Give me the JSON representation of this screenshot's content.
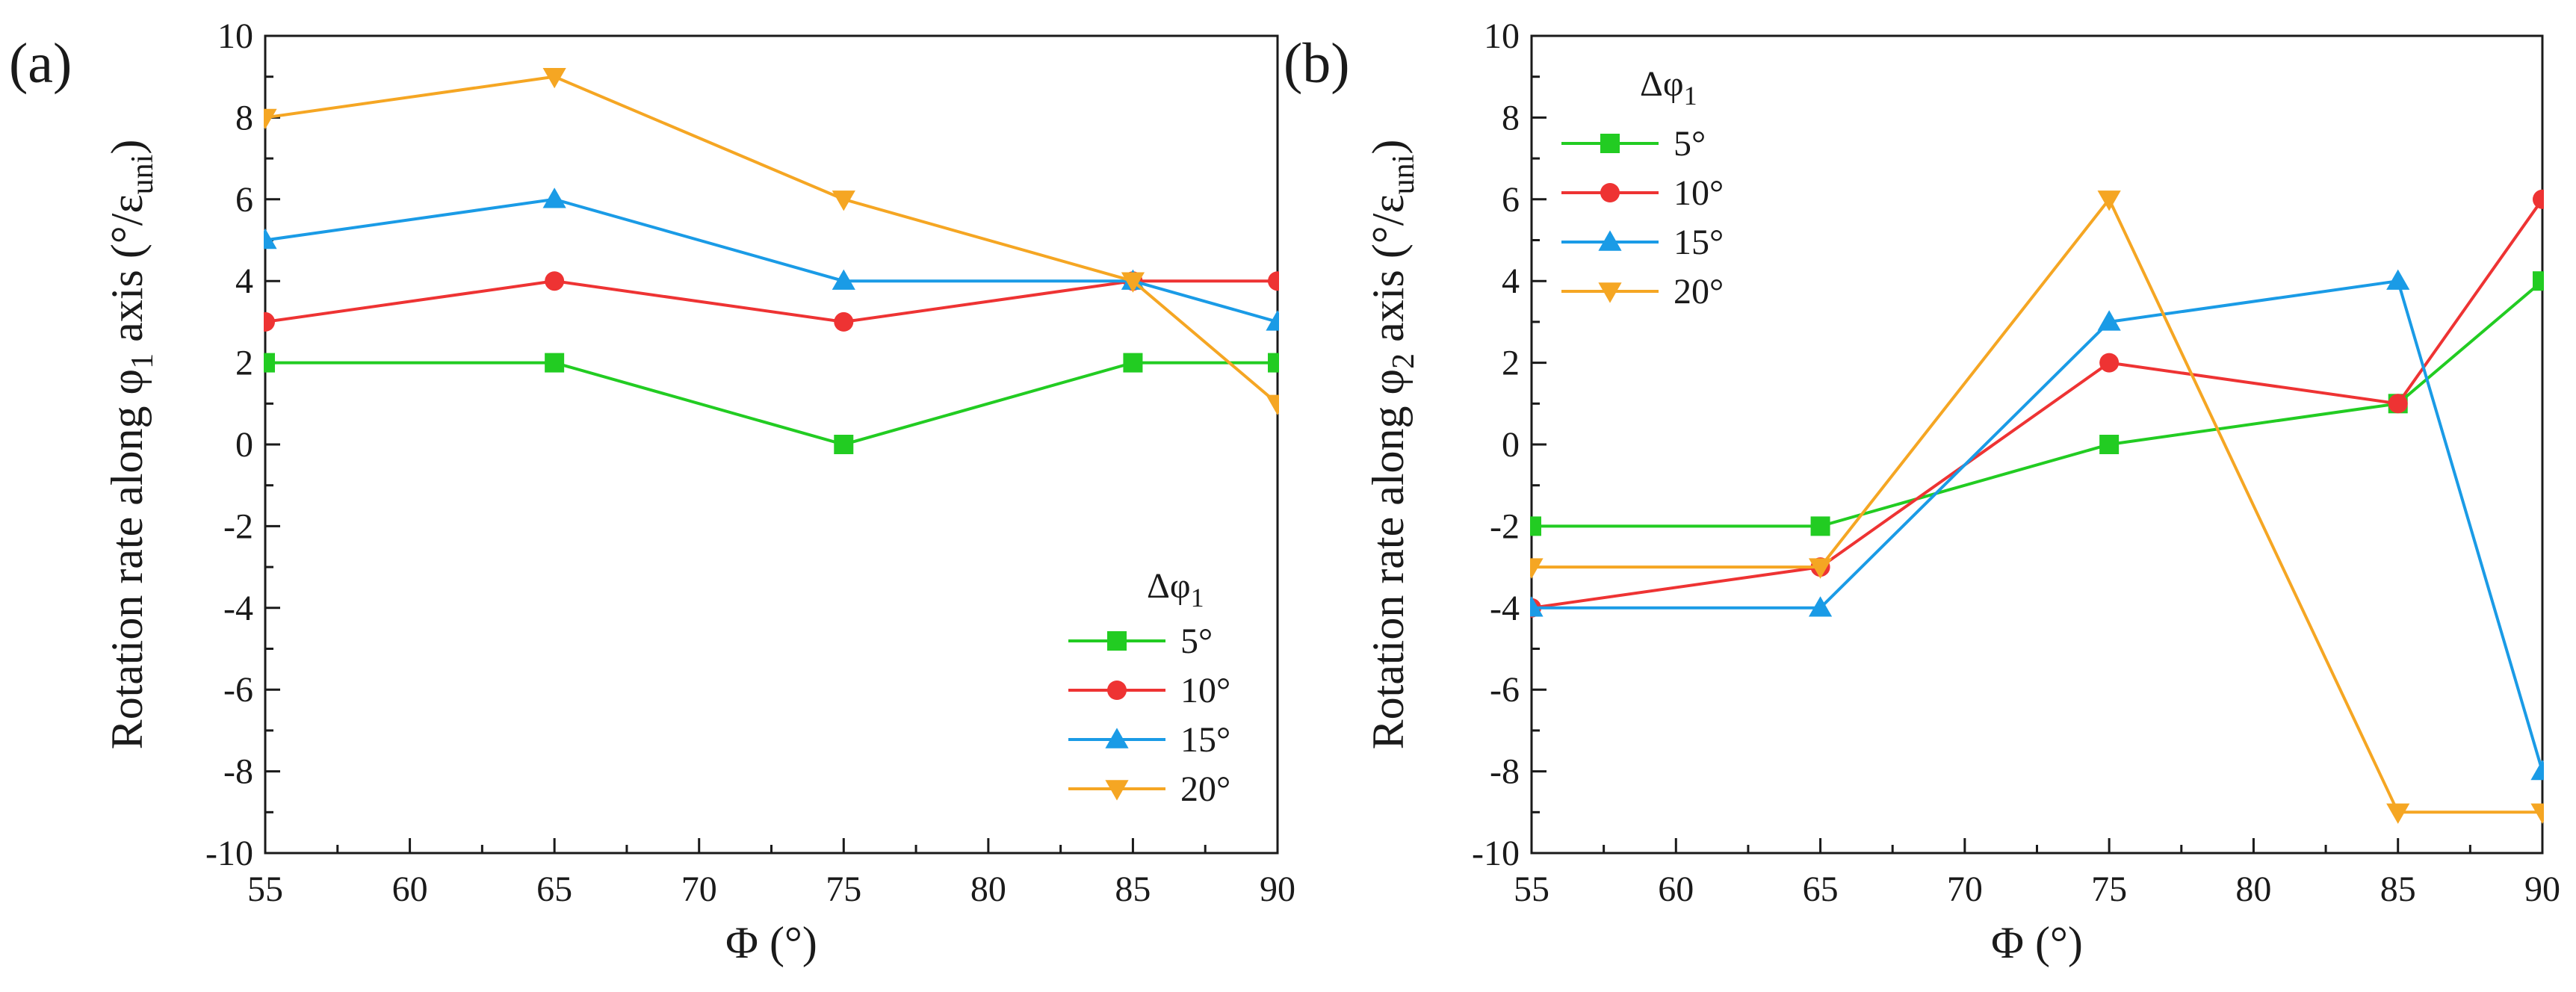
{
  "chart_data": [
    {
      "panel_label": "(a)",
      "type": "line",
      "xlabel": "Φ (°)",
      "ylabel": "Rotation rate along φ1 axis (°/εuni)",
      "ylabel_parts": {
        "pre": "Rotation rate along φ",
        "sub": "1",
        "mid": " axis (°/ε",
        "sub2": "uni",
        "post": ")"
      },
      "xlim": [
        55,
        90
      ],
      "ylim": [
        -10,
        10
      ],
      "xticks": [
        "55",
        "60",
        "65",
        "70",
        "75",
        "80",
        "85",
        "90"
      ],
      "yticks": [
        "10",
        "8",
        "6",
        "4",
        "2",
        "0",
        "-2",
        "-4",
        "-6",
        "-8",
        "-10"
      ],
      "legend_title": "Δφ1",
      "legend_title_parts": {
        "pre": "Δφ",
        "sub": "1"
      },
      "legend_position": "bottom-right",
      "x": [
        55,
        65,
        75,
        85,
        90
      ],
      "series": [
        {
          "name": "5°",
          "marker": "square",
          "color": "#22cc22",
          "values": [
            2,
            2,
            0,
            2,
            2
          ]
        },
        {
          "name": "10°",
          "marker": "circle",
          "color": "#ee3333",
          "values": [
            3,
            4,
            3,
            4,
            4
          ]
        },
        {
          "name": "15°",
          "marker": "triangle-up",
          "color": "#1a9be6",
          "values": [
            5,
            6,
            4,
            4,
            3
          ]
        },
        {
          "name": "20°",
          "marker": "triangle-down",
          "color": "#f5a623",
          "values": [
            8,
            9,
            6,
            4,
            1
          ]
        }
      ]
    },
    {
      "panel_label": "(b)",
      "type": "line",
      "xlabel": "Φ (°)",
      "ylabel": "Rotation rate along φ2 axis (°/εuni)",
      "ylabel_parts": {
        "pre": "Rotation rate along φ",
        "sub": "2",
        "mid": " axis (°/ε",
        "sub2": "uni",
        "post": ")"
      },
      "xlim": [
        55,
        90
      ],
      "ylim": [
        -10,
        10
      ],
      "xticks": [
        "55",
        "60",
        "65",
        "70",
        "75",
        "80",
        "85",
        "90"
      ],
      "yticks": [
        "10",
        "8",
        "6",
        "4",
        "2",
        "0",
        "-2",
        "-4",
        "-6",
        "-8",
        "-10"
      ],
      "legend_title": "Δφ1",
      "legend_title_parts": {
        "pre": "Δφ",
        "sub": "1"
      },
      "legend_position": "top-left",
      "x": [
        55,
        65,
        75,
        85,
        90
      ],
      "series": [
        {
          "name": "5°",
          "marker": "square",
          "color": "#22cc22",
          "values": [
            -2,
            -2,
            0,
            1,
            4
          ]
        },
        {
          "name": "10°",
          "marker": "circle",
          "color": "#ee3333",
          "values": [
            -4,
            -3,
            2,
            1,
            6
          ]
        },
        {
          "name": "15°",
          "marker": "triangle-up",
          "color": "#1a9be6",
          "values": [
            -4,
            -4,
            3,
            4,
            -8
          ]
        },
        {
          "name": "20°",
          "marker": "triangle-down",
          "color": "#f5a623",
          "values": [
            -3,
            -3,
            6,
            -9,
            -9
          ]
        }
      ]
    }
  ]
}
